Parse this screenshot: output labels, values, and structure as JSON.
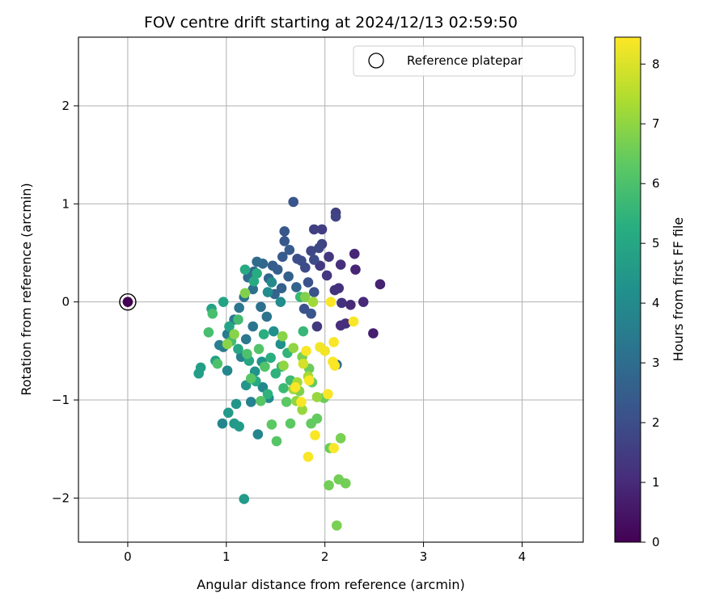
{
  "chart_data": {
    "type": "scatter",
    "title": "FOV centre drift starting at 2024/12/13 02:59:50",
    "xlabel": "Angular distance from reference (arcmin)",
    "ylabel": "Rotation from reference (arcmin)",
    "xlim": [
      -0.5,
      4.62
    ],
    "ylim": [
      -2.45,
      2.7
    ],
    "xticks": [
      0,
      1,
      2,
      3,
      4
    ],
    "yticks": [
      -2,
      -1,
      0,
      1,
      2
    ],
    "grid": true,
    "legend": {
      "position": "top-right",
      "entries": [
        "Reference platepar"
      ]
    },
    "colorbar": {
      "label": "Hours from first FF file",
      "range": [
        0,
        8.45
      ],
      "ticks": [
        0,
        1,
        2,
        3,
        4,
        5,
        6,
        7,
        8
      ],
      "colormap": "viridis"
    },
    "reference_point": {
      "x": 0,
      "y": 0,
      "hours": 0
    },
    "points": [
      {
        "x": 2.49,
        "y": -0.32,
        "h": 0.7
      },
      {
        "x": 2.56,
        "y": 0.18,
        "h": 0.8
      },
      {
        "x": 2.3,
        "y": 0.49,
        "h": 0.9
      },
      {
        "x": 2.31,
        "y": 0.33,
        "h": 0.9
      },
      {
        "x": 2.39,
        "y": 0.0,
        "h": 1.0
      },
      {
        "x": 2.26,
        "y": -0.03,
        "h": 1.0
      },
      {
        "x": 2.21,
        "y": -0.22,
        "h": 1.1
      },
      {
        "x": 2.16,
        "y": -0.24,
        "h": 1.1
      },
      {
        "x": 2.16,
        "y": 0.38,
        "h": 1.1
      },
      {
        "x": 2.14,
        "y": 0.14,
        "h": 1.2
      },
      {
        "x": 2.1,
        "y": 0.12,
        "h": 1.2
      },
      {
        "x": 2.17,
        "y": -0.01,
        "h": 1.2
      },
      {
        "x": 2.04,
        "y": 0.46,
        "h": 1.3
      },
      {
        "x": 2.02,
        "y": 0.27,
        "h": 1.3
      },
      {
        "x": 1.95,
        "y": 0.37,
        "h": 1.4
      },
      {
        "x": 1.92,
        "y": -0.25,
        "h": 1.4
      },
      {
        "x": 1.97,
        "y": 0.74,
        "h": 1.5
      },
      {
        "x": 1.89,
        "y": 0.74,
        "h": 1.6
      },
      {
        "x": 2.11,
        "y": 0.91,
        "h": 1.6
      },
      {
        "x": 2.11,
        "y": 0.87,
        "h": 1.7
      },
      {
        "x": 1.97,
        "y": 0.59,
        "h": 1.7
      },
      {
        "x": 1.94,
        "y": 0.55,
        "h": 1.8
      },
      {
        "x": 1.86,
        "y": 0.52,
        "h": 1.8
      },
      {
        "x": 1.89,
        "y": 0.43,
        "h": 1.9
      },
      {
        "x": 1.8,
        "y": 0.35,
        "h": 1.9
      },
      {
        "x": 1.76,
        "y": 0.42,
        "h": 2.0
      },
      {
        "x": 1.72,
        "y": 0.44,
        "h": 2.0
      },
      {
        "x": 1.83,
        "y": 0.2,
        "h": 2.1
      },
      {
        "x": 1.89,
        "y": 0.1,
        "h": 2.1
      },
      {
        "x": 1.79,
        "y": -0.07,
        "h": 2.1
      },
      {
        "x": 1.86,
        "y": -0.12,
        "h": 2.2
      },
      {
        "x": 1.68,
        "y": 1.02,
        "h": 2.2
      },
      {
        "x": 1.59,
        "y": 0.72,
        "h": 2.3
      },
      {
        "x": 1.59,
        "y": 0.62,
        "h": 2.3
      },
      {
        "x": 1.64,
        "y": 0.53,
        "h": 2.4
      },
      {
        "x": 1.57,
        "y": 0.46,
        "h": 2.4
      },
      {
        "x": 1.52,
        "y": 0.33,
        "h": 2.5
      },
      {
        "x": 1.47,
        "y": 0.37,
        "h": 2.5
      },
      {
        "x": 1.63,
        "y": 0.26,
        "h": 2.6
      },
      {
        "x": 1.56,
        "y": 0.14,
        "h": 2.6
      },
      {
        "x": 1.71,
        "y": 0.15,
        "h": 2.7
      },
      {
        "x": 1.49,
        "y": 0.08,
        "h": 2.7
      },
      {
        "x": 1.43,
        "y": 0.24,
        "h": 2.8
      },
      {
        "x": 1.37,
        "y": 0.39,
        "h": 2.8
      },
      {
        "x": 1.31,
        "y": 0.41,
        "h": 2.9
      },
      {
        "x": 2.12,
        "y": -0.64,
        "h": 2.9
      },
      {
        "x": 1.28,
        "y": 0.31,
        "h": 3.0
      },
      {
        "x": 1.22,
        "y": 0.25,
        "h": 3.0
      },
      {
        "x": 1.27,
        "y": 0.13,
        "h": 3.1
      },
      {
        "x": 1.35,
        "y": -0.05,
        "h": 3.1
      },
      {
        "x": 1.41,
        "y": -0.15,
        "h": 3.2
      },
      {
        "x": 1.18,
        "y": 0.05,
        "h": 3.2
      },
      {
        "x": 1.13,
        "y": -0.06,
        "h": 3.3
      },
      {
        "x": 1.27,
        "y": -0.25,
        "h": 3.3
      },
      {
        "x": 1.2,
        "y": -0.38,
        "h": 3.4
      },
      {
        "x": 1.08,
        "y": -0.18,
        "h": 3.4
      },
      {
        "x": 1.01,
        "y": -0.33,
        "h": 3.5
      },
      {
        "x": 0.97,
        "y": -0.46,
        "h": 3.5
      },
      {
        "x": 0.93,
        "y": -0.44,
        "h": 3.6
      },
      {
        "x": 1.15,
        "y": -0.56,
        "h": 3.6
      },
      {
        "x": 1.25,
        "y": -1.02,
        "h": 3.7
      },
      {
        "x": 1.32,
        "y": -1.35,
        "h": 3.8
      },
      {
        "x": 0.96,
        "y": -1.24,
        "h": 3.8
      },
      {
        "x": 1.01,
        "y": -0.7,
        "h": 3.9
      },
      {
        "x": 1.37,
        "y": -0.87,
        "h": 3.9
      },
      {
        "x": 1.43,
        "y": -0.98,
        "h": 4.0
      },
      {
        "x": 1.46,
        "y": 0.2,
        "h": 4.0
      },
      {
        "x": 1.42,
        "y": 0.1,
        "h": 4.1
      },
      {
        "x": 1.55,
        "y": 0.0,
        "h": 4.1
      },
      {
        "x": 1.48,
        "y": -0.3,
        "h": 4.2
      },
      {
        "x": 1.55,
        "y": -0.43,
        "h": 4.2
      },
      {
        "x": 1.36,
        "y": -0.61,
        "h": 4.3
      },
      {
        "x": 1.29,
        "y": -0.71,
        "h": 4.3
      },
      {
        "x": 1.2,
        "y": -0.85,
        "h": 4.4
      },
      {
        "x": 1.1,
        "y": -1.04,
        "h": 4.4
      },
      {
        "x": 1.02,
        "y": -1.13,
        "h": 4.5
      },
      {
        "x": 1.08,
        "y": -1.24,
        "h": 4.5
      },
      {
        "x": 1.13,
        "y": -1.27,
        "h": 4.6
      },
      {
        "x": 1.18,
        "y": -2.01,
        "h": 4.6
      },
      {
        "x": 0.72,
        "y": -0.73,
        "h": 4.7
      },
      {
        "x": 0.74,
        "y": -0.67,
        "h": 4.7
      },
      {
        "x": 0.85,
        "y": -0.07,
        "h": 4.8
      },
      {
        "x": 0.89,
        "y": -0.6,
        "h": 4.8
      },
      {
        "x": 0.97,
        "y": 0.0,
        "h": 4.9
      },
      {
        "x": 1.03,
        "y": -0.25,
        "h": 4.9
      },
      {
        "x": 1.12,
        "y": -0.48,
        "h": 5.0
      },
      {
        "x": 1.23,
        "y": -0.6,
        "h": 5.0
      },
      {
        "x": 1.3,
        "y": -0.81,
        "h": 5.1
      },
      {
        "x": 1.19,
        "y": 0.33,
        "h": 5.1
      },
      {
        "x": 1.28,
        "y": 0.21,
        "h": 5.2
      },
      {
        "x": 1.31,
        "y": 0.29,
        "h": 5.2
      },
      {
        "x": 1.38,
        "y": -0.33,
        "h": 5.3
      },
      {
        "x": 1.45,
        "y": -0.57,
        "h": 5.3
      },
      {
        "x": 1.5,
        "y": -0.73,
        "h": 5.4
      },
      {
        "x": 1.42,
        "y": -0.94,
        "h": 5.4
      },
      {
        "x": 1.56,
        "y": -0.66,
        "h": 5.5
      },
      {
        "x": 1.62,
        "y": -0.52,
        "h": 5.5
      },
      {
        "x": 1.75,
        "y": 0.05,
        "h": 5.6
      },
      {
        "x": 1.78,
        "y": -0.3,
        "h": 5.6
      },
      {
        "x": 1.65,
        "y": -0.8,
        "h": 5.7
      },
      {
        "x": 1.58,
        "y": -0.88,
        "h": 5.7
      },
      {
        "x": 1.12,
        "y": -0.18,
        "h": 5.8
      },
      {
        "x": 1.05,
        "y": -0.4,
        "h": 5.8
      },
      {
        "x": 0.86,
        "y": -0.12,
        "h": 5.9
      },
      {
        "x": 0.82,
        "y": -0.31,
        "h": 5.9
      },
      {
        "x": 0.91,
        "y": -0.63,
        "h": 6.0
      },
      {
        "x": 1.21,
        "y": -0.53,
        "h": 6.0
      },
      {
        "x": 1.33,
        "y": -0.48,
        "h": 6.1
      },
      {
        "x": 1.39,
        "y": -0.66,
        "h": 6.1
      },
      {
        "x": 1.25,
        "y": -0.78,
        "h": 6.2
      },
      {
        "x": 1.35,
        "y": -1.01,
        "h": 6.2
      },
      {
        "x": 1.51,
        "y": -1.42,
        "h": 6.2
      },
      {
        "x": 1.46,
        "y": -1.25,
        "h": 6.3
      },
      {
        "x": 1.65,
        "y": -1.24,
        "h": 6.3
      },
      {
        "x": 1.61,
        "y": -1.02,
        "h": 6.3
      },
      {
        "x": 1.86,
        "y": -1.24,
        "h": 6.4
      },
      {
        "x": 1.92,
        "y": -1.19,
        "h": 6.4
      },
      {
        "x": 1.87,
        "y": -0.82,
        "h": 6.4
      },
      {
        "x": 1.84,
        "y": -0.68,
        "h": 6.5
      },
      {
        "x": 1.99,
        "y": -0.98,
        "h": 6.5
      },
      {
        "x": 2.05,
        "y": -1.49,
        "h": 6.5
      },
      {
        "x": 2.04,
        "y": -1.87,
        "h": 6.6
      },
      {
        "x": 2.14,
        "y": -1.81,
        "h": 6.6
      },
      {
        "x": 2.21,
        "y": -1.85,
        "h": 6.6
      },
      {
        "x": 2.16,
        "y": -1.39,
        "h": 6.7
      },
      {
        "x": 2.12,
        "y": -2.28,
        "h": 6.7
      },
      {
        "x": 1.77,
        "y": -0.56,
        "h": 6.7
      },
      {
        "x": 1.74,
        "y": -0.91,
        "h": 6.8
      },
      {
        "x": 1.8,
        "y": 0.05,
        "h": 6.8
      },
      {
        "x": 1.19,
        "y": 0.09,
        "h": 6.8
      },
      {
        "x": 1.08,
        "y": -0.33,
        "h": 6.9
      },
      {
        "x": 1.01,
        "y": -0.43,
        "h": 6.9
      },
      {
        "x": 1.57,
        "y": -0.35,
        "h": 6.9
      },
      {
        "x": 1.68,
        "y": -0.47,
        "h": 7.0
      },
      {
        "x": 1.58,
        "y": -0.65,
        "h": 7.0
      },
      {
        "x": 1.71,
        "y": -1.01,
        "h": 7.0
      },
      {
        "x": 1.77,
        "y": -1.1,
        "h": 7.1
      },
      {
        "x": 1.92,
        "y": -0.97,
        "h": 7.1
      },
      {
        "x": 1.88,
        "y": 0.0,
        "h": 7.2
      },
      {
        "x": 1.68,
        "y": -0.89,
        "h": 7.2
      },
      {
        "x": 1.72,
        "y": -0.82,
        "h": 7.3
      },
      {
        "x": 1.83,
        "y": -0.76,
        "h": 7.3
      },
      {
        "x": 1.95,
        "y": -0.46,
        "h": 8.3
      },
      {
        "x": 2.0,
        "y": -0.5,
        "h": 8.3
      },
      {
        "x": 2.08,
        "y": -0.61,
        "h": 8.4
      },
      {
        "x": 2.1,
        "y": -0.65,
        "h": 8.4
      },
      {
        "x": 2.06,
        "y": 0.0,
        "h": 8.4
      },
      {
        "x": 2.09,
        "y": -0.41,
        "h": 8.4
      },
      {
        "x": 2.29,
        "y": -0.2,
        "h": 8.4
      },
      {
        "x": 2.03,
        "y": -0.94,
        "h": 8.4
      },
      {
        "x": 1.9,
        "y": -1.36,
        "h": 8.4
      },
      {
        "x": 1.83,
        "y": -1.58,
        "h": 8.4
      },
      {
        "x": 2.09,
        "y": -1.49,
        "h": 8.4
      },
      {
        "x": 1.7,
        "y": -0.87,
        "h": 8.4
      },
      {
        "x": 1.76,
        "y": -1.02,
        "h": 8.4
      },
      {
        "x": 1.84,
        "y": -0.8,
        "h": 8.4
      },
      {
        "x": 1.81,
        "y": -0.5,
        "h": 8.4
      },
      {
        "x": 1.78,
        "y": -0.63,
        "h": 7.9
      }
    ]
  }
}
